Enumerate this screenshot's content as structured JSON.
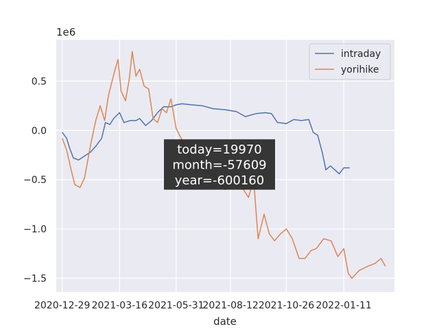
{
  "chart_data": {
    "type": "line",
    "xlabel": "date",
    "ylabel": "",
    "y_offset_text": "1e6",
    "grid": true,
    "legend_position": "top-right",
    "x_axis_type": "date",
    "xlim": [
      "2020-12-21",
      "2022-03-20"
    ],
    "ylim": [
      -1.64,
      0.92
    ],
    "x_ticks": [
      "2020-12-29",
      "2021-03-16",
      "2021-05-31",
      "2021-08-12",
      "2021-10-26",
      "2022-01-11"
    ],
    "y_ticks": [
      -1.5,
      -1.0,
      -0.5,
      0.0,
      0.5
    ],
    "y_tick_labels": [
      "−1.5",
      "−1.0",
      "−0.5",
      "0.0",
      "0.5"
    ],
    "annotation": [
      "today=19970",
      "month=-57609",
      "year=-600160"
    ],
    "series": [
      {
        "name": "intraday",
        "color": "#4c72b0",
        "points": [
          [
            "2020-12-29",
            -0.02
          ],
          [
            "2021-01-04",
            -0.08
          ],
          [
            "2021-01-08",
            -0.18
          ],
          [
            "2021-01-13",
            -0.28
          ],
          [
            "2021-01-20",
            -0.3
          ],
          [
            "2021-01-28",
            -0.26
          ],
          [
            "2021-02-05",
            -0.22
          ],
          [
            "2021-02-12",
            -0.16
          ],
          [
            "2021-02-20",
            -0.08
          ],
          [
            "2021-02-25",
            0.08
          ],
          [
            "2021-03-03",
            0.06
          ],
          [
            "2021-03-08",
            0.12
          ],
          [
            "2021-03-16",
            0.18
          ],
          [
            "2021-03-22",
            0.08
          ],
          [
            "2021-03-30",
            0.1
          ],
          [
            "2021-04-07",
            0.1
          ],
          [
            "2021-04-12",
            0.12
          ],
          [
            "2021-04-20",
            0.05
          ],
          [
            "2021-04-28",
            0.1
          ],
          [
            "2021-05-06",
            0.18
          ],
          [
            "2021-05-14",
            0.24
          ],
          [
            "2021-05-24",
            0.24
          ],
          [
            "2021-05-31",
            0.26
          ],
          [
            "2021-06-08",
            0.27
          ],
          [
            "2021-06-20",
            0.26
          ],
          [
            "2021-07-05",
            0.25
          ],
          [
            "2021-07-20",
            0.22
          ],
          [
            "2021-08-05",
            0.21
          ],
          [
            "2021-08-20",
            0.19
          ],
          [
            "2021-09-01",
            0.14
          ],
          [
            "2021-09-15",
            0.17
          ],
          [
            "2021-09-28",
            0.18
          ],
          [
            "2021-10-06",
            0.17
          ],
          [
            "2021-10-14",
            0.08
          ],
          [
            "2021-10-26",
            0.07
          ],
          [
            "2021-11-05",
            0.11
          ],
          [
            "2021-11-15",
            0.1
          ],
          [
            "2021-11-25",
            0.11
          ],
          [
            "2021-12-01",
            -0.02
          ],
          [
            "2021-12-07",
            -0.05
          ],
          [
            "2021-12-13",
            -0.22
          ],
          [
            "2021-12-18",
            -0.4
          ],
          [
            "2021-12-24",
            -0.36
          ],
          [
            "2021-12-30",
            -0.4
          ],
          [
            "2022-01-05",
            -0.44
          ],
          [
            "2022-01-11",
            -0.38
          ],
          [
            "2022-01-19",
            -0.38
          ]
        ]
      },
      {
        "name": "yorihike",
        "color": "#dd8452",
        "points": [
          [
            "2020-12-29",
            -0.08
          ],
          [
            "2021-01-04",
            -0.2
          ],
          [
            "2021-01-10",
            -0.4
          ],
          [
            "2021-01-15",
            -0.55
          ],
          [
            "2021-01-22",
            -0.58
          ],
          [
            "2021-01-28",
            -0.48
          ],
          [
            "2021-02-05",
            -0.15
          ],
          [
            "2021-02-12",
            0.1
          ],
          [
            "2021-02-18",
            0.25
          ],
          [
            "2021-02-24",
            0.1
          ],
          [
            "2021-03-01",
            0.35
          ],
          [
            "2021-03-06",
            0.5
          ],
          [
            "2021-03-10",
            0.62
          ],
          [
            "2021-03-14",
            0.72
          ],
          [
            "2021-03-18",
            0.4
          ],
          [
            "2021-03-24",
            0.3
          ],
          [
            "2021-03-29",
            0.52
          ],
          [
            "2021-04-02",
            0.8
          ],
          [
            "2021-04-07",
            0.55
          ],
          [
            "2021-04-12",
            0.62
          ],
          [
            "2021-04-18",
            0.45
          ],
          [
            "2021-04-24",
            0.42
          ],
          [
            "2021-04-30",
            0.12
          ],
          [
            "2021-05-06",
            0.08
          ],
          [
            "2021-05-12",
            0.22
          ],
          [
            "2021-05-18",
            0.18
          ],
          [
            "2021-05-24",
            0.32
          ],
          [
            "2021-05-31",
            0.02
          ],
          [
            "2021-06-08",
            -0.1
          ],
          [
            "2021-06-16",
            -0.25
          ],
          [
            "2021-06-24",
            -0.35
          ],
          [
            "2021-07-05",
            -0.4
          ],
          [
            "2021-07-20",
            -0.45
          ],
          [
            "2021-08-05",
            -0.6
          ],
          [
            "2021-08-15",
            -0.5
          ],
          [
            "2021-08-25",
            -0.55
          ],
          [
            "2021-09-05",
            -0.68
          ],
          [
            "2021-09-12",
            -0.5
          ],
          [
            "2021-09-18",
            -1.1
          ],
          [
            "2021-09-26",
            -0.85
          ],
          [
            "2021-10-03",
            -1.05
          ],
          [
            "2021-10-10",
            -1.12
          ],
          [
            "2021-10-18",
            -1.05
          ],
          [
            "2021-10-26",
            -1.0
          ],
          [
            "2021-11-03",
            -1.1
          ],
          [
            "2021-11-12",
            -1.3
          ],
          [
            "2021-11-20",
            -1.3
          ],
          [
            "2021-11-28",
            -1.22
          ],
          [
            "2021-12-05",
            -1.2
          ],
          [
            "2021-12-15",
            -1.1
          ],
          [
            "2021-12-25",
            -1.12
          ],
          [
            "2022-01-03",
            -1.28
          ],
          [
            "2022-01-11",
            -1.2
          ],
          [
            "2022-01-17",
            -1.45
          ],
          [
            "2022-01-22",
            -1.5
          ],
          [
            "2022-02-01",
            -1.42
          ],
          [
            "2022-02-12",
            -1.38
          ],
          [
            "2022-02-22",
            -1.35
          ],
          [
            "2022-03-02",
            -1.3
          ],
          [
            "2022-03-08",
            -1.38
          ]
        ]
      }
    ]
  }
}
